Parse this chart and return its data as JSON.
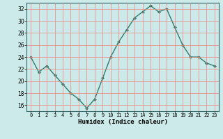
{
  "x": [
    0,
    1,
    2,
    3,
    4,
    5,
    6,
    7,
    8,
    9,
    10,
    11,
    12,
    13,
    14,
    15,
    16,
    17,
    18,
    19,
    20,
    21,
    22,
    23
  ],
  "y": [
    24,
    21.5,
    22.5,
    21,
    19.5,
    18,
    17,
    15.5,
    17,
    20.5,
    24,
    26.5,
    28.5,
    30.5,
    31.5,
    32.5,
    31.5,
    32,
    29,
    26,
    24,
    24,
    23,
    22.5
  ],
  "line_color": "#2e7d6e",
  "marker": "D",
  "marker_size": 2.0,
  "bg_color": "#cceaea",
  "grid_color": "#f08080",
  "xlabel": "Humidex (Indice chaleur)",
  "xlim": [
    -0.5,
    23.5
  ],
  "ylim": [
    15,
    33
  ],
  "yticks": [
    16,
    18,
    20,
    22,
    24,
    26,
    28,
    30,
    32
  ],
  "xtick_labels": [
    "0",
    "1",
    "2",
    "3",
    "4",
    "5",
    "6",
    "7",
    "8",
    "9",
    "10",
    "11",
    "12",
    "13",
    "14",
    "15",
    "16",
    "17",
    "18",
    "19",
    "20",
    "21",
    "22",
    "23"
  ]
}
